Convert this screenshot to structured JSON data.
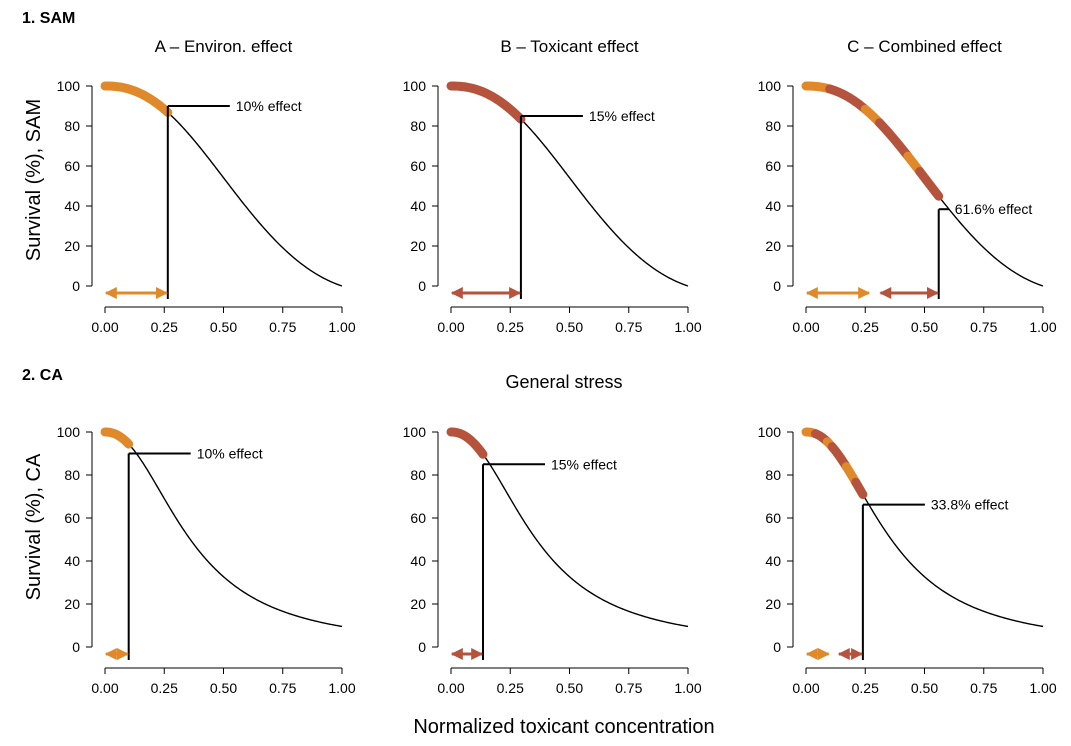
{
  "figure": {
    "sections": [
      "1. SAM",
      "2. CA"
    ],
    "section_color": "#b5533c",
    "x_label": "Normalized toxicant concentration",
    "middle_label": "General stress",
    "colors": {
      "environment": "#e0892a",
      "toxicant": "#b5533c",
      "curve": "#000000"
    }
  },
  "chart_data": [
    {
      "type": "line",
      "row": "1. SAM",
      "title": "A – Environ. effect",
      "ylabel": "Survival (%), SAM",
      "x": [
        0.0,
        0.25,
        0.5,
        0.75,
        1.0
      ],
      "xlim": [
        0,
        1
      ],
      "ylim": [
        0,
        100
      ],
      "xticks": [
        "0.00",
        "0.25",
        "0.50",
        "0.75",
        "1.00"
      ],
      "yticks": [
        "0",
        "20",
        "40",
        "60",
        "80",
        "100"
      ],
      "curve": "sam",
      "marker_x": 0.265,
      "marker_y": 90,
      "annotation": "10% effect",
      "arrows": [
        {
          "from": 0.0,
          "to": 0.265,
          "color": "environment"
        }
      ],
      "highlight_segments": [
        {
          "from": 0.0,
          "to": 0.265,
          "color": "environment"
        }
      ]
    },
    {
      "type": "line",
      "row": "1. SAM",
      "title": "B – Toxicant effect",
      "ylabel": "",
      "x": [
        0.0,
        0.25,
        0.5,
        0.75,
        1.0
      ],
      "xlim": [
        0,
        1
      ],
      "ylim": [
        0,
        100
      ],
      "xticks": [
        "0.00",
        "0.25",
        "0.50",
        "0.75",
        "1.00"
      ],
      "yticks": [
        "0",
        "20",
        "40",
        "60",
        "80",
        "100"
      ],
      "curve": "sam",
      "marker_x": 0.295,
      "marker_y": 85,
      "annotation": "15% effect",
      "arrows": [
        {
          "from": 0.0,
          "to": 0.295,
          "color": "toxicant"
        }
      ],
      "highlight_segments": [
        {
          "from": 0.0,
          "to": 0.295,
          "color": "toxicant"
        }
      ]
    },
    {
      "type": "line",
      "row": "1. SAM",
      "title": "C – Combined effect",
      "ylabel": "",
      "x": [
        0.0,
        0.25,
        0.5,
        0.75,
        1.0
      ],
      "xlim": [
        0,
        1
      ],
      "ylim": [
        0,
        100
      ],
      "xticks": [
        "0.00",
        "0.25",
        "0.50",
        "0.75",
        "1.00"
      ],
      "yticks": [
        "0",
        "20",
        "40",
        "60",
        "80",
        "100"
      ],
      "curve": "sam",
      "marker_x": 0.56,
      "marker_y": 38.4,
      "annotation": "61.6% effect",
      "arrows": [
        {
          "from": 0.0,
          "to": 0.27,
          "color": "environment"
        },
        {
          "from": 0.31,
          "to": 0.56,
          "color": "toxicant"
        }
      ],
      "highlight_segments": [
        {
          "from": 0.0,
          "to": 0.1,
          "color": "environment"
        },
        {
          "from": 0.1,
          "to": 0.25,
          "color": "toxicant"
        },
        {
          "from": 0.25,
          "to": 0.31,
          "color": "environment"
        },
        {
          "from": 0.31,
          "to": 0.43,
          "color": "toxicant"
        },
        {
          "from": 0.43,
          "to": 0.48,
          "color": "environment"
        },
        {
          "from": 0.48,
          "to": 0.56,
          "color": "toxicant"
        }
      ]
    },
    {
      "type": "line",
      "row": "2. CA",
      "title": "",
      "ylabel": "Survival (%), CA",
      "x": [
        0.0,
        0.25,
        0.5,
        0.75,
        1.0
      ],
      "xlim": [
        0,
        1
      ],
      "ylim": [
        0,
        100
      ],
      "xticks": [
        "0.00",
        "0.25",
        "0.50",
        "0.75",
        "1.00"
      ],
      "yticks": [
        "0",
        "20",
        "40",
        "60",
        "80",
        "100"
      ],
      "curve": "ca",
      "marker_x": 0.1,
      "marker_y": 90,
      "annotation": "10% effect",
      "arrows": [
        {
          "from": 0.0,
          "to": 0.1,
          "color": "environment"
        }
      ],
      "highlight_segments": [
        {
          "from": 0.0,
          "to": 0.1,
          "color": "environment"
        }
      ]
    },
    {
      "type": "line",
      "row": "2. CA",
      "title": "",
      "ylabel": "",
      "x": [
        0.0,
        0.25,
        0.5,
        0.75,
        1.0
      ],
      "xlim": [
        0,
        1
      ],
      "ylim": [
        0,
        100
      ],
      "xticks": [
        "0.00",
        "0.25",
        "0.50",
        "0.75",
        "1.00"
      ],
      "yticks": [
        "0",
        "20",
        "40",
        "60",
        "80",
        "100"
      ],
      "curve": "ca",
      "marker_x": 0.135,
      "marker_y": 85,
      "annotation": "15% effect",
      "arrows": [
        {
          "from": 0.0,
          "to": 0.135,
          "color": "toxicant"
        }
      ],
      "highlight_segments": [
        {
          "from": 0.0,
          "to": 0.135,
          "color": "toxicant"
        }
      ]
    },
    {
      "type": "line",
      "row": "2. CA",
      "title": "",
      "ylabel": "",
      "x": [
        0.0,
        0.25,
        0.5,
        0.75,
        1.0
      ],
      "xlim": [
        0,
        1
      ],
      "ylim": [
        0,
        100
      ],
      "xticks": [
        "0.00",
        "0.25",
        "0.50",
        "0.75",
        "1.00"
      ],
      "yticks": [
        "0",
        "20",
        "40",
        "60",
        "80",
        "100"
      ],
      "curve": "ca",
      "marker_x": 0.24,
      "marker_y": 66.2,
      "annotation": "33.8% effect",
      "arrows": [
        {
          "from": 0.0,
          "to": 0.1,
          "color": "environment"
        },
        {
          "from": 0.135,
          "to": 0.24,
          "color": "toxicant"
        }
      ],
      "highlight_segments": [
        {
          "from": 0.0,
          "to": 0.04,
          "color": "environment"
        },
        {
          "from": 0.04,
          "to": 0.09,
          "color": "toxicant"
        },
        {
          "from": 0.09,
          "to": 0.11,
          "color": "environment"
        },
        {
          "from": 0.11,
          "to": 0.17,
          "color": "toxicant"
        },
        {
          "from": 0.17,
          "to": 0.21,
          "color": "environment"
        },
        {
          "from": 0.21,
          "to": 0.24,
          "color": "toxicant"
        }
      ]
    }
  ]
}
